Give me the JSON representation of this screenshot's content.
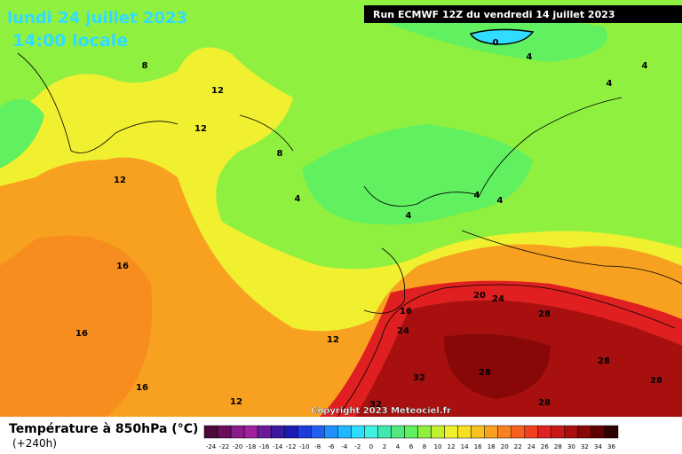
{
  "header": {
    "date": "lundi 24 juillet 2023",
    "time": "14:00 locale",
    "run": "Run ECMWF 12Z du vendredi 14 juillet 2023"
  },
  "map": {
    "contour_labels": [
      8,
      12,
      12,
      8,
      12,
      4,
      4,
      4,
      4,
      16,
      16,
      16,
      12,
      12,
      16,
      24,
      20,
      24,
      28,
      32,
      28,
      28,
      28,
      28,
      32,
      0,
      4,
      4,
      4
    ],
    "copyright": "Copyright 2023 Meteociel.fr"
  },
  "legend": {
    "title": "Température à 850hPa (°C)",
    "lead_time": "(+240h)",
    "levels": [
      -24,
      -22,
      -20,
      -18,
      -16,
      -14,
      -12,
      -10,
      -8,
      -6,
      -4,
      -2,
      0,
      2,
      4,
      6,
      8,
      10,
      12,
      14,
      16,
      18,
      20,
      22,
      24,
      26,
      28,
      30,
      32,
      34,
      36
    ],
    "colors": [
      "#4b0a3a",
      "#6b0d5a",
      "#8b1a8b",
      "#a020a0",
      "#6a1a9a",
      "#3b1aa0",
      "#1a1ab4",
      "#1e3cdc",
      "#2060f0",
      "#2090ff",
      "#20b8ff",
      "#30dcff",
      "#40f0e0",
      "#40e8b0",
      "#50e880",
      "#60f060",
      "#90f040",
      "#c0f030",
      "#f0f030",
      "#f8e020",
      "#f8c020",
      "#f8a020",
      "#f88020",
      "#f86020",
      "#f04020",
      "#e02020",
      "#c81818",
      "#a81010",
      "#880808",
      "#600000",
      "#300000"
    ]
  }
}
